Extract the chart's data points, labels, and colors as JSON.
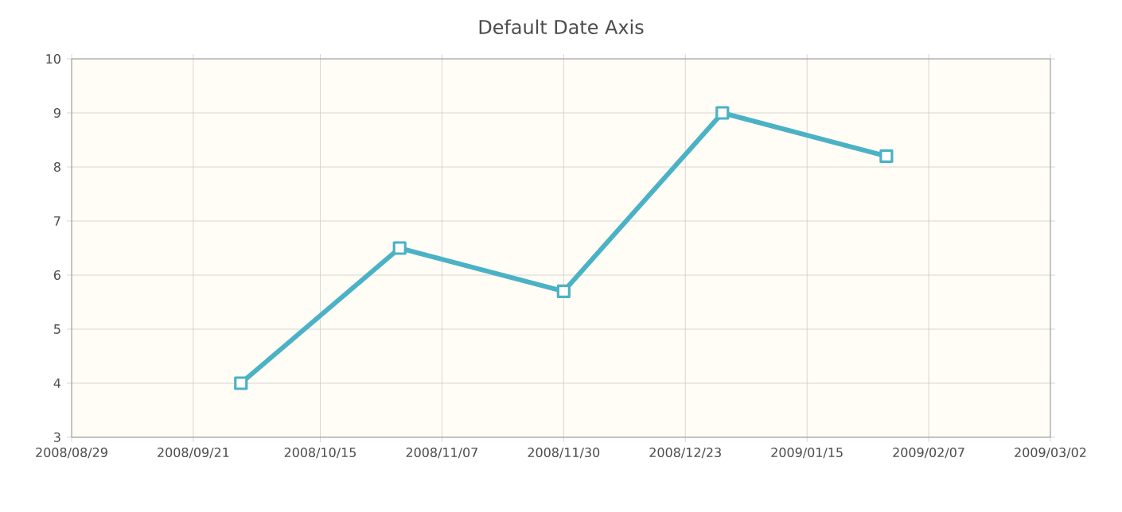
{
  "chart_data": {
    "type": "line",
    "title": "Default Date Axis",
    "x": [
      "2008-09-30",
      "2008-10-30",
      "2008-11-30",
      "2008-12-30",
      "2009-01-30"
    ],
    "series": [
      {
        "color": "#4bb2c5",
        "values": [
          4,
          6.5,
          5.7,
          9,
          8.2
        ]
      }
    ],
    "xlim": [
      "2008-08-29",
      "2009-03-02"
    ],
    "xticks": [
      {
        "value": "2008-08-29",
        "label": "2008/08/29"
      },
      {
        "value": "2008-09-21",
        "label": "2008/09/21"
      },
      {
        "value": "2008-10-15",
        "label": "2008/10/15"
      },
      {
        "value": "2008-11-07",
        "label": "2008/11/07"
      },
      {
        "value": "2008-11-30",
        "label": "2008/11/30"
      },
      {
        "value": "2008-12-23",
        "label": "2008/12/23"
      },
      {
        "value": "2009-01-15",
        "label": "2009/01/15"
      },
      {
        "value": "2009-02-07",
        "label": "2009/02/07"
      },
      {
        "value": "2009-03-02",
        "label": "2009/03/02"
      }
    ],
    "ylim": [
      3,
      10
    ],
    "yticks": [
      3,
      4,
      5,
      6,
      7,
      8,
      9,
      10
    ],
    "grid": true,
    "marker": "square",
    "line_style": "solid"
  }
}
